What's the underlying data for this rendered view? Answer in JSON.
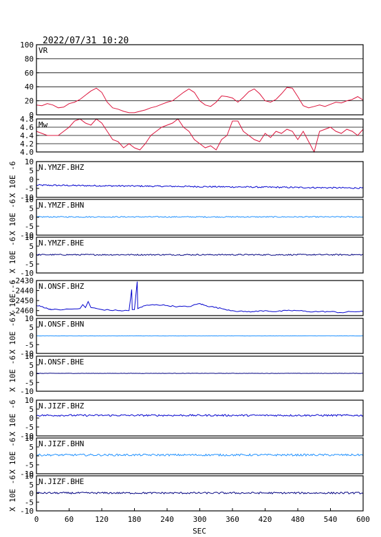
{
  "timestamp": "2022/07/31  10:20",
  "chart_data": [
    {
      "type": "line",
      "id": "vr",
      "title": "VR",
      "ylabel": "",
      "ylim": [
        0,
        100
      ],
      "yticks": [
        "0",
        "20",
        "40",
        "60",
        "80",
        "100"
      ],
      "grid": true,
      "color": "#dc143c",
      "x": [
        0,
        10,
        20,
        30,
        40,
        50,
        60,
        70,
        80,
        90,
        100,
        110,
        120,
        130,
        140,
        150,
        160,
        170,
        180,
        190,
        200,
        210,
        220,
        230,
        240,
        250,
        260,
        270,
        280,
        290,
        300,
        310,
        320,
        330,
        340,
        350,
        360,
        370,
        380,
        390,
        400,
        410,
        420,
        430,
        440,
        450,
        460,
        470,
        480,
        490,
        500,
        510,
        520,
        530,
        540,
        550,
        560,
        570,
        580,
        590,
        600
      ],
      "y": [
        14,
        13,
        16,
        14,
        10,
        11,
        16,
        18,
        22,
        28,
        34,
        38,
        32,
        18,
        10,
        8,
        5,
        3,
        3,
        5,
        7,
        10,
        12,
        15,
        18,
        20,
        26,
        32,
        37,
        32,
        20,
        14,
        12,
        18,
        27,
        26,
        24,
        18,
        25,
        33,
        37,
        30,
        20,
        18,
        22,
        30,
        39,
        38,
        26,
        13,
        10,
        12,
        14,
        12,
        15,
        18,
        17,
        20,
        22,
        26,
        21
      ]
    },
    {
      "type": "line",
      "id": "mw",
      "title": "Mw",
      "ylabel": "",
      "ylim": [
        4.0,
        4.8
      ],
      "yticks": [
        "4.0",
        "4.2",
        "4.4",
        "4.6",
        "4.8"
      ],
      "grid": true,
      "color": "#dc143c",
      "x": [
        0,
        10,
        20,
        30,
        40,
        50,
        60,
        70,
        80,
        90,
        100,
        110,
        120,
        130,
        140,
        150,
        160,
        170,
        180,
        190,
        200,
        210,
        220,
        230,
        240,
        250,
        260,
        270,
        280,
        290,
        300,
        310,
        320,
        330,
        340,
        350,
        360,
        370,
        380,
        390,
        400,
        410,
        420,
        430,
        440,
        450,
        460,
        470,
        480,
        490,
        500,
        510,
        520,
        530,
        540,
        550,
        560,
        570,
        580,
        590,
        600
      ],
      "y": [
        4.5,
        4.45,
        4.4,
        4.4,
        4.4,
        4.5,
        4.6,
        4.75,
        4.8,
        4.7,
        4.65,
        4.8,
        4.7,
        4.5,
        4.3,
        4.25,
        4.1,
        4.2,
        4.1,
        4.05,
        4.2,
        4.4,
        4.5,
        4.6,
        4.65,
        4.7,
        4.8,
        4.6,
        4.5,
        4.3,
        4.2,
        4.1,
        4.15,
        4.05,
        4.3,
        4.4,
        4.75,
        4.75,
        4.5,
        4.4,
        4.3,
        4.25,
        4.45,
        4.35,
        4.5,
        4.45,
        4.55,
        4.5,
        4.3,
        4.5,
        4.25,
        4.0,
        4.5,
        4.55,
        4.6,
        4.5,
        4.45,
        4.55,
        4.5,
        4.4,
        4.55
      ]
    },
    {
      "type": "line",
      "id": "ymzf-bhz",
      "title": "N.YMZF.BHZ",
      "ylabel": "X 10E -6",
      "ylim": [
        -10,
        10
      ],
      "yticks": [
        "-10",
        "-5",
        "0",
        "5",
        "10"
      ],
      "grid": false,
      "color": "#0000cd",
      "trace": "noise",
      "x": [
        0,
        600
      ],
      "y": [
        -3.2,
        -4.8
      ],
      "amplitude": 0.4
    },
    {
      "type": "line",
      "id": "ymzf-bhn",
      "title": "N.YMZF.BHN",
      "ylabel": "X 10E -6",
      "ylim": [
        -10,
        10
      ],
      "yticks": [
        "-10",
        "-5",
        "0",
        "5",
        "10"
      ],
      "grid": false,
      "color": "#1e90ff",
      "trace": "noise",
      "x": [
        0,
        600
      ],
      "y": [
        0.2,
        0.2
      ],
      "amplitude": 0.3
    },
    {
      "type": "line",
      "id": "ymzf-bhe",
      "title": "N.YMZF.BHE",
      "ylabel": "X 10E -6",
      "ylim": [
        -10,
        10
      ],
      "yticks": [
        "-10",
        "-5",
        "0",
        "5",
        "10"
      ],
      "grid": false,
      "color": "#000080",
      "trace": "noise",
      "x": [
        0,
        600
      ],
      "y": [
        0.2,
        0.2
      ],
      "amplitude": 0.35
    },
    {
      "type": "line",
      "id": "onsf-bhz",
      "title": "N.ONSF.BHZ",
      "ylabel": "X 10E -6",
      "ylim": [
        -2465,
        -2430
      ],
      "yticks": [
        "-2460",
        "-2450",
        "-2440",
        "-2430"
      ],
      "grid": false,
      "color": "#0000cd",
      "trace": "points",
      "x": [
        0,
        10,
        20,
        30,
        50,
        80,
        85,
        90,
        95,
        100,
        120,
        150,
        170,
        175,
        176,
        180,
        185,
        186,
        190,
        200,
        220,
        240,
        260,
        280,
        300,
        310,
        320,
        340,
        360,
        380,
        400,
        420,
        440,
        460,
        480,
        500,
        520,
        540,
        560,
        580,
        600
      ],
      "y": [
        -2455,
        -2456,
        -2458,
        -2459,
        -2459,
        -2458,
        -2454,
        -2457,
        -2451,
        -2457,
        -2459,
        -2460,
        -2460,
        -2439,
        -2459,
        -2459,
        -2431,
        -2458,
        -2457,
        -2455,
        -2454,
        -2455,
        -2456,
        -2456,
        -2453,
        -2455,
        -2456,
        -2458,
        -2460,
        -2461,
        -2461,
        -2460,
        -2461,
        -2460,
        -2460,
        -2461,
        -2461,
        -2461,
        -2462,
        -2461,
        -2461
      ]
    },
    {
      "type": "line",
      "id": "onsf-bhn",
      "title": "N.ONSF.BHN",
      "ylabel": "X 10E -6",
      "ylim": [
        -10,
        10
      ],
      "yticks": [
        "-10",
        "-5",
        "0",
        "5",
        "10"
      ],
      "grid": false,
      "color": "#1e90ff",
      "trace": "noise",
      "x": [
        0,
        600
      ],
      "y": [
        0,
        0
      ],
      "amplitude": 0.05
    },
    {
      "type": "line",
      "id": "onsf-bhe",
      "title": "N.ONSF.BHE",
      "ylabel": "X 10E -6",
      "ylim": [
        -10,
        10
      ],
      "yticks": [
        "-10",
        "-5",
        "0",
        "5",
        "10"
      ],
      "grid": false,
      "color": "#000080",
      "trace": "noise",
      "x": [
        0,
        600
      ],
      "y": [
        0.2,
        0.2
      ],
      "amplitude": 0.08
    },
    {
      "type": "line",
      "id": "jizf-bhz",
      "title": "N.JIZF.BHZ",
      "ylabel": "X 10E -6",
      "ylim": [
        -10,
        10
      ],
      "yticks": [
        "-10",
        "-5",
        "0",
        "5",
        "10"
      ],
      "grid": false,
      "color": "#0000cd",
      "trace": "noise",
      "x": [
        0,
        600
      ],
      "y": [
        1.5,
        1.5
      ],
      "amplitude": 0.5
    },
    {
      "type": "line",
      "id": "jizf-bhn",
      "title": "N.JIZF.BHN",
      "ylabel": "X 10E -6",
      "ylim": [
        -10,
        10
      ],
      "yticks": [
        "-10",
        "-5",
        "0",
        "5",
        "10"
      ],
      "grid": false,
      "color": "#1e90ff",
      "trace": "noise",
      "x": [
        0,
        600
      ],
      "y": [
        0.5,
        0.5
      ],
      "amplitude": 0.55
    },
    {
      "type": "line",
      "id": "jizf-bhe",
      "title": "N.JIZF.BHE",
      "ylabel": "X 10E -6",
      "ylim": [
        -10,
        10
      ],
      "yticks": [
        "-10",
        "-5",
        "0",
        "5",
        "10"
      ],
      "grid": false,
      "color": "#000080",
      "trace": "noise",
      "x": [
        0,
        600
      ],
      "y": [
        0.2,
        0.2
      ],
      "amplitude": 0.5
    }
  ],
  "xaxis": {
    "label": "SEC",
    "xlim": [
      0,
      600
    ],
    "ticks": [
      "0",
      "60",
      "120",
      "180",
      "240",
      "300",
      "360",
      "420",
      "480",
      "540",
      "600"
    ]
  }
}
